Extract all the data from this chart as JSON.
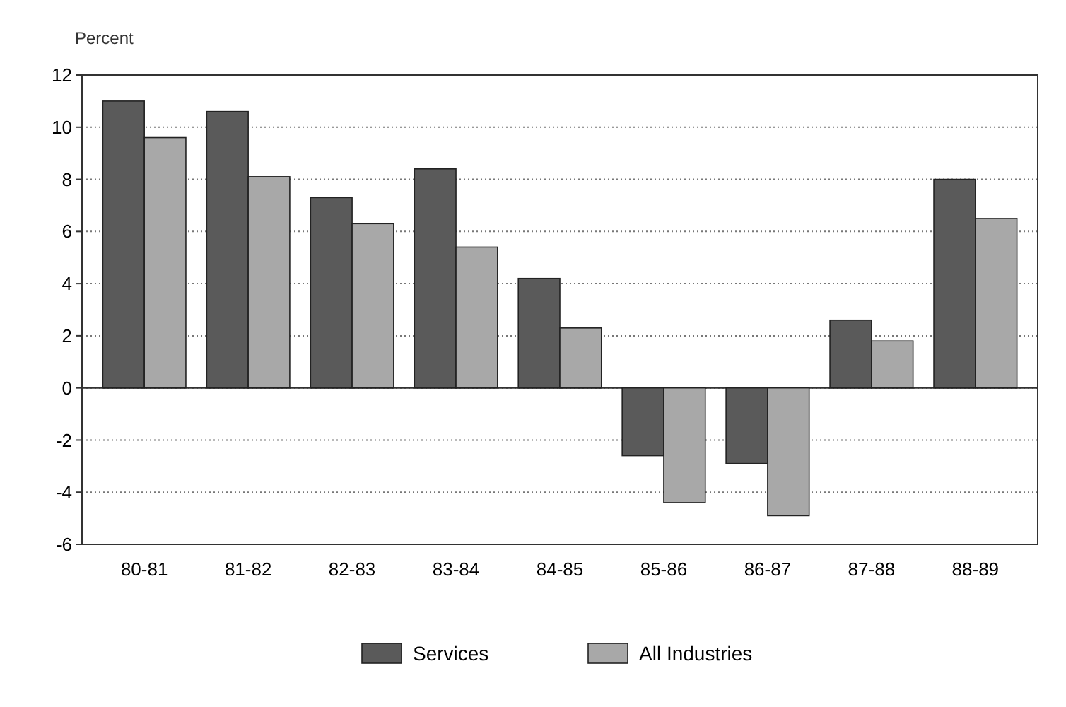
{
  "chart_data": {
    "type": "bar",
    "ylabel": "Percent",
    "categories": [
      "80-81",
      "81-82",
      "82-83",
      "83-84",
      "84-85",
      "85-86",
      "86-87",
      "87-88",
      "88-89"
    ],
    "series": [
      {
        "name": "Services",
        "color": "#5a5a5a",
        "values": [
          11,
          10.6,
          7.3,
          8.4,
          4.2,
          -2.6,
          -2.9,
          2.6,
          8
        ]
      },
      {
        "name": "All Industries",
        "color": "#a8a8a8",
        "values": [
          9.6,
          8.1,
          6.3,
          5.4,
          2.3,
          -4.4,
          -4.9,
          1.8,
          6.5
        ]
      }
    ],
    "ylim": [
      -6,
      12
    ],
    "yticks": [
      -6,
      -4,
      -2,
      0,
      2,
      4,
      6,
      8,
      10,
      12
    ],
    "grid": "y",
    "legend": "bottom"
  }
}
